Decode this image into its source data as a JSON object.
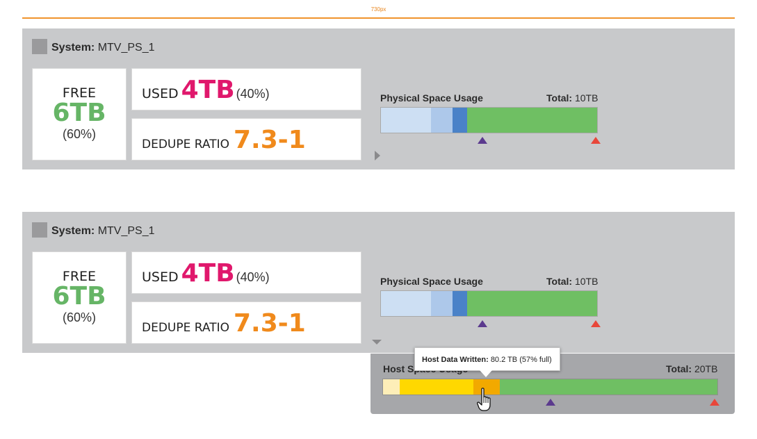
{
  "ruler": {
    "label": "730px"
  },
  "panels": [
    {
      "system_label": "System:",
      "system_name": "MTV_PS_1",
      "free": {
        "label": "FREE",
        "value": "6TB",
        "pct": "(60%)"
      },
      "used": {
        "label": "USED",
        "value": "4TB",
        "pct": "(40%)"
      },
      "dedupe": {
        "label": "DEDUPE RATIO",
        "value": "7.3-1"
      },
      "physical": {
        "title": "Physical Space Usage",
        "total_label": "Total:",
        "total_value": "10TB",
        "segments": [
          {
            "fraction": 0.23,
            "color": "#cddff3"
          },
          {
            "fraction": 0.1,
            "color": "#adc8ea"
          },
          {
            "fraction": 0.07,
            "color": "#4a82c8"
          },
          {
            "fraction": 0.6,
            "color": "#6fbf63"
          }
        ],
        "markers": [
          {
            "position": 0.47,
            "color": "#5b3a8e"
          },
          {
            "position": 0.99,
            "color": "#e8473a"
          }
        ]
      },
      "expanded": false
    },
    {
      "system_label": "System:",
      "system_name": "MTV_PS_1",
      "free": {
        "label": "FREE",
        "value": "6TB",
        "pct": "(60%)"
      },
      "used": {
        "label": "USED",
        "value": "4TB",
        "pct": "(40%)"
      },
      "dedupe": {
        "label": "DEDUPE RATIO",
        "value": "7.3-1"
      },
      "physical": {
        "title": "Physical Space Usage",
        "total_label": "Total:",
        "total_value": "10TB",
        "segments": [
          {
            "fraction": 0.23,
            "color": "#cddff3"
          },
          {
            "fraction": 0.1,
            "color": "#adc8ea"
          },
          {
            "fraction": 0.07,
            "color": "#4a82c8"
          },
          {
            "fraction": 0.6,
            "color": "#6fbf63"
          }
        ],
        "markers": [
          {
            "position": 0.47,
            "color": "#5b3a8e"
          },
          {
            "position": 0.99,
            "color": "#e8473a"
          }
        ]
      },
      "expanded": true
    }
  ],
  "host": {
    "title": "Host Space Usage",
    "total_label": "Total:",
    "total_value": "20TB",
    "segments": [
      {
        "fraction": 0.05,
        "color": "#fdeeb8"
      },
      {
        "fraction": 0.22,
        "color": "#ffd800"
      },
      {
        "fraction": 0.08,
        "color": "#f2a900"
      },
      {
        "fraction": 0.65,
        "color": "#6fbf63"
      }
    ],
    "markers": [
      {
        "position": 0.5,
        "color": "#5b3a8e"
      },
      {
        "position": 0.99,
        "color": "#e8473a"
      }
    ]
  },
  "tooltip": {
    "label": "Host Data Written:",
    "value": "80.2 TB (57% full)"
  }
}
